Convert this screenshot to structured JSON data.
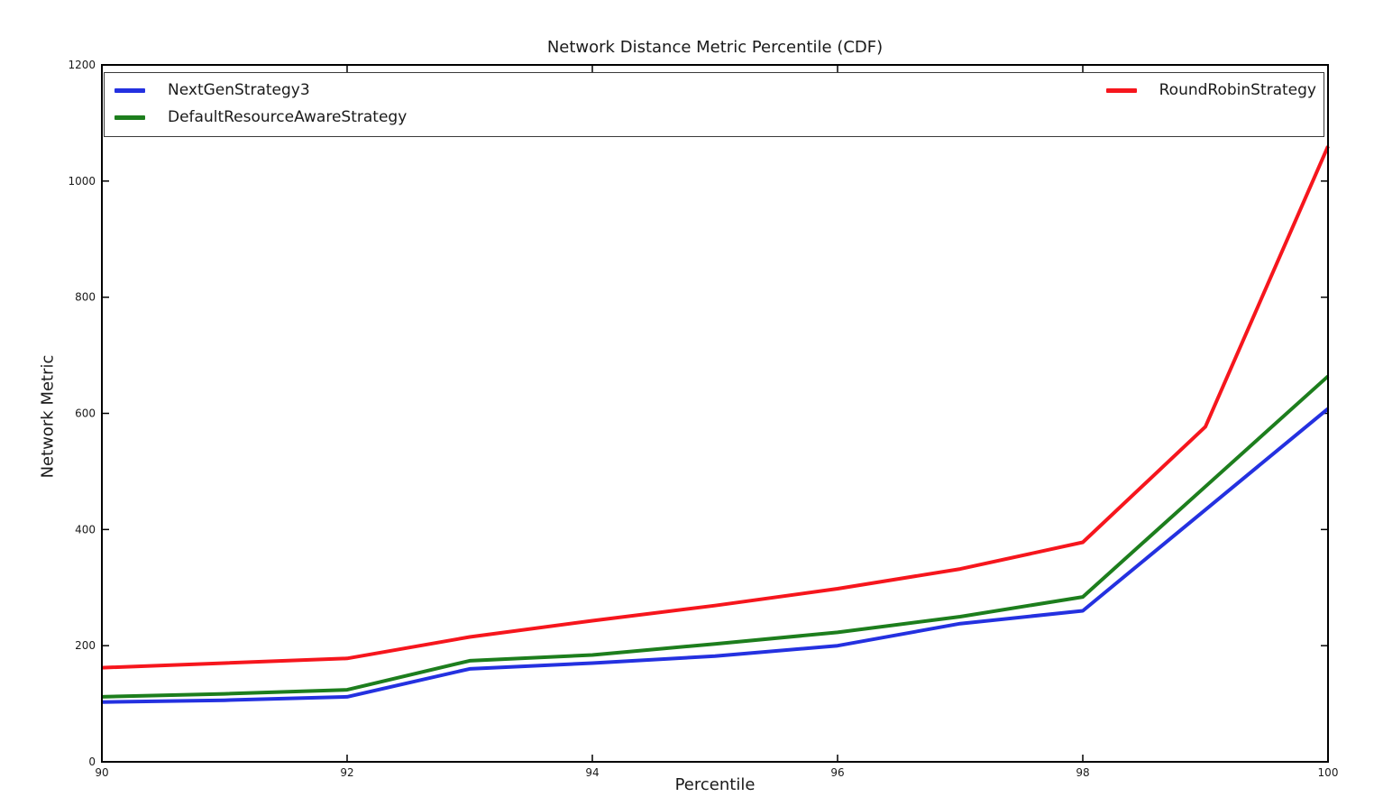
{
  "chart_data": {
    "type": "line",
    "title": "Network Distance Metric Percentile (CDF)",
    "xlabel": "Percentile",
    "ylabel": "Network Metric",
    "xlim": [
      90,
      100
    ],
    "ylim": [
      0,
      1200
    ],
    "xticks": [
      90,
      92,
      94,
      96,
      98,
      100
    ],
    "yticks": [
      0,
      200,
      400,
      600,
      800,
      1000,
      1200
    ],
    "grid": false,
    "legend_position": "top-inside full-width box, two columns",
    "axis_color": "#000000",
    "line_width": 4,
    "x": [
      90,
      91,
      92,
      93,
      94,
      95,
      96,
      97,
      98,
      99,
      100
    ],
    "series": [
      {
        "name": "NextGenStrategy3",
        "color": "#2431e0",
        "values": [
          103,
          106,
          112,
          160,
          170,
          182,
          200,
          238,
          260,
          434,
          608
        ]
      },
      {
        "name": "DefaultResourceAwareStrategy",
        "color": "#1d7e1d",
        "values": [
          112,
          117,
          124,
          174,
          184,
          203,
          223,
          250,
          284,
          474,
          664
        ]
      },
      {
        "name": "RoundRobinStrategy",
        "color": "#f6161d",
        "values": [
          162,
          170,
          178,
          215,
          243,
          269,
          298,
          332,
          378,
          577,
          1060
        ]
      }
    ]
  }
}
